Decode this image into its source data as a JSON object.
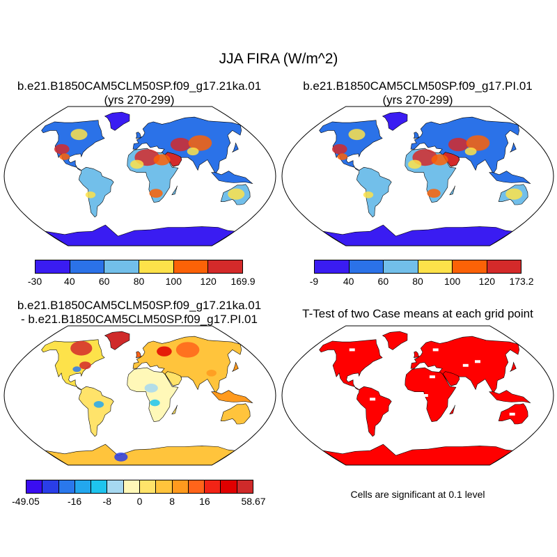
{
  "title": "JJA FIRA (W/m^2)",
  "panels": [
    {
      "title_line1": "b.e21.B1850CAM5CLM50SP.f09_g17.21ka.01",
      "title_line2": "(yrs 270-299)"
    },
    {
      "title_line1": "b.e21.B1850CAM5CLM50SP.f09_g17.PI.01",
      "title_line2": "(yrs 270-299)"
    },
    {
      "title_line1": "b.e21.B1850CAM5CLM50SP.f09_g17.21ka.01",
      "title_line2": "- b.e21.B1850CAM5CLM50SP.f09_g17.PI.01"
    },
    {
      "title_line1": "T-Test of two Case means at each grid point",
      "title_line2": ""
    }
  ],
  "colorbars": [
    {
      "colors": [
        "#3a1cf2",
        "#2b72e8",
        "#72bfea",
        "#fde24a",
        "#fb6207",
        "#d42a2a"
      ],
      "labels": [
        "-30",
        "40",
        "60",
        "80",
        "100",
        "120",
        "169.9"
      ]
    },
    {
      "colors": [
        "#3a1cf2",
        "#2b72e8",
        "#72bfea",
        "#fde24a",
        "#fb6207",
        "#d42a2a"
      ],
      "labels": [
        "-9",
        "40",
        "60",
        "80",
        "100",
        "120",
        "173.2"
      ]
    },
    {
      "colors": [
        "#3a0df0",
        "#2a3ee8",
        "#2a78ec",
        "#23a7ee",
        "#1ec4ee",
        "#a6d8f0",
        "#fff8b8",
        "#ffe36a",
        "#ffc43c",
        "#ff9a1e",
        "#ff641a",
        "#f22416",
        "#e00000",
        "#cf2a2a"
      ],
      "labels": [
        "-49.05",
        "-16",
        "-8",
        "0",
        "8",
        "16",
        "58.67"
      ]
    }
  ],
  "significance_note": "Cells are significant at 0.1 level",
  "colors": {
    "significant": "#ff0000",
    "land_low": "#2b72e8",
    "land_high": "#d42a2a"
  }
}
